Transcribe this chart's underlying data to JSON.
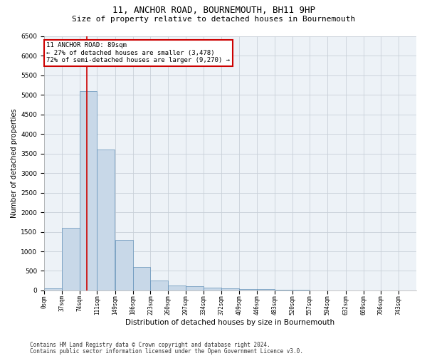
{
  "title": "11, ANCHOR ROAD, BOURNEMOUTH, BH11 9HP",
  "subtitle": "Size of property relative to detached houses in Bournemouth",
  "xlabel": "Distribution of detached houses by size in Bournemouth",
  "ylabel": "Number of detached properties",
  "footer_line1": "Contains HM Land Registry data © Crown copyright and database right 2024.",
  "footer_line2": "Contains public sector information licensed under the Open Government Licence v3.0.",
  "bin_labels": [
    "0sqm",
    "37sqm",
    "74sqm",
    "111sqm",
    "149sqm",
    "186sqm",
    "223sqm",
    "260sqm",
    "297sqm",
    "334sqm",
    "372sqm",
    "409sqm",
    "446sqm",
    "483sqm",
    "520sqm",
    "557sqm",
    "594sqm",
    "632sqm",
    "669sqm",
    "706sqm",
    "743sqm"
  ],
  "bin_edges": [
    0,
    37,
    74,
    111,
    149,
    186,
    223,
    260,
    297,
    334,
    372,
    409,
    446,
    483,
    520,
    557,
    594,
    632,
    669,
    706,
    743,
    780
  ],
  "bar_heights": [
    50,
    1600,
    5100,
    3600,
    1300,
    600,
    260,
    130,
    110,
    80,
    50,
    40,
    30,
    15,
    10,
    8,
    5,
    4,
    3,
    2,
    1
  ],
  "bar_color": "#c8d8e8",
  "bar_edge_color": "#6090b8",
  "ylim": [
    0,
    6500
  ],
  "yticks": [
    0,
    500,
    1000,
    1500,
    2000,
    2500,
    3000,
    3500,
    4000,
    4500,
    5000,
    5500,
    6000,
    6500
  ],
  "red_line_x": 89,
  "red_line_color": "#cc0000",
  "annotation_text": "11 ANCHOR ROAD: 89sqm\n← 27% of detached houses are smaller (3,478)\n72% of semi-detached houses are larger (9,270) →",
  "annotation_box_color": "#ffffff",
  "annotation_box_edge_color": "#cc0000",
  "background_color": "#ffffff",
  "axes_bg_color": "#edf2f7",
  "grid_color": "#c8d0d8",
  "title_fontsize": 9,
  "subtitle_fontsize": 8
}
